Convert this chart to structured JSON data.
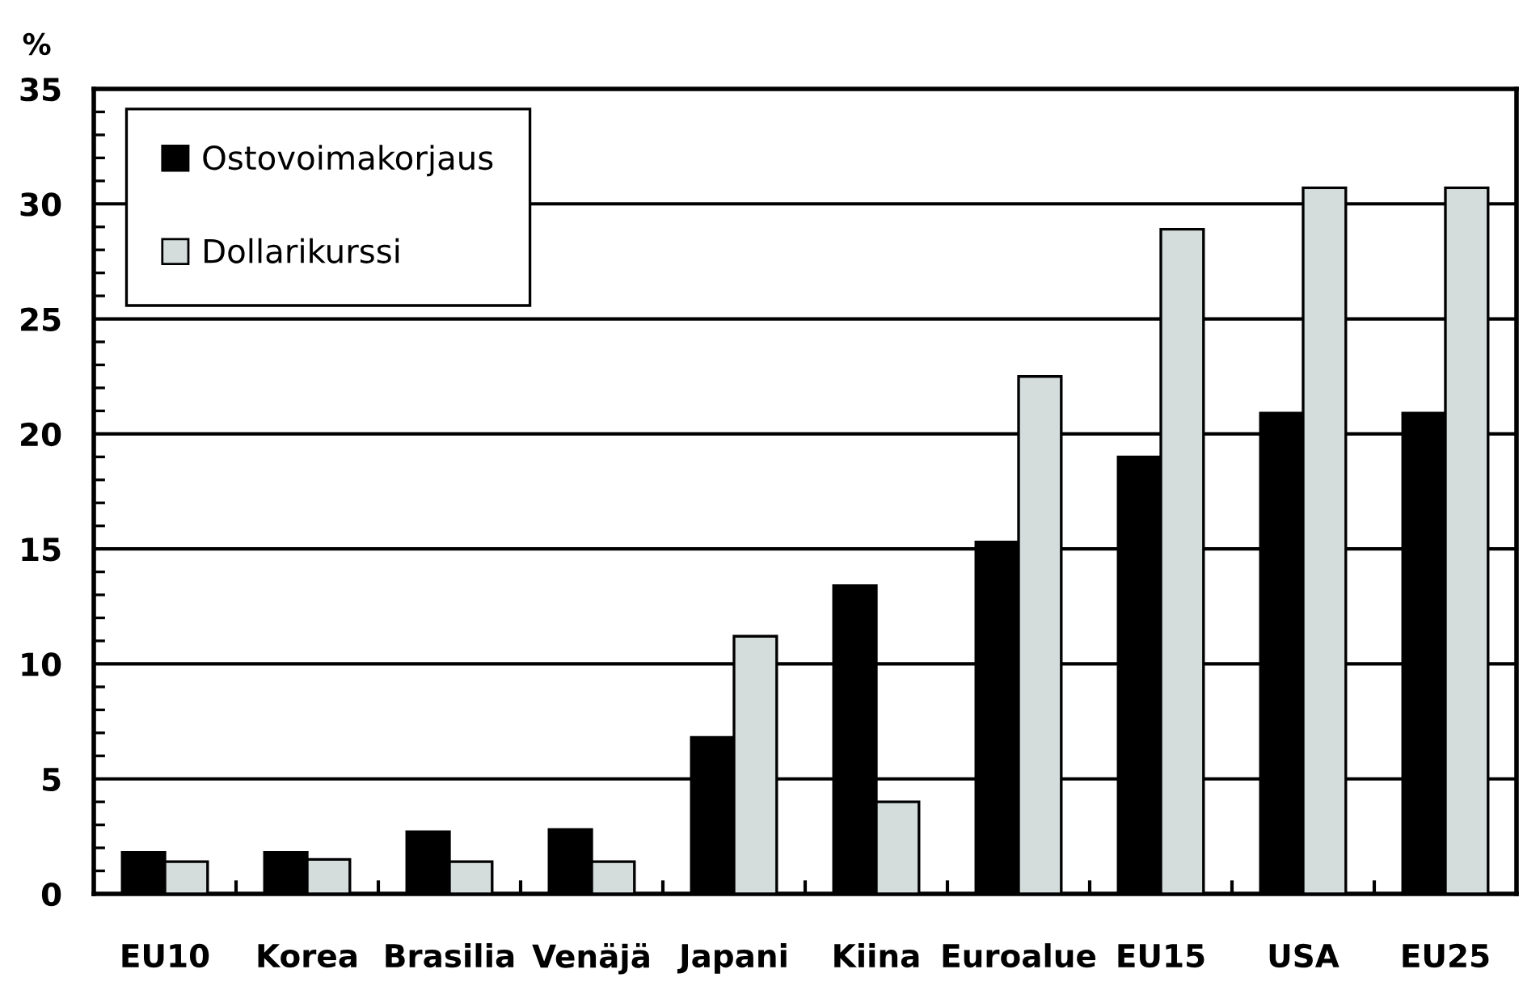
{
  "chart_data": {
    "type": "bar",
    "ylabel": "%",
    "categories": [
      "EU10",
      "Korea",
      "Brasilia",
      "Venäjä",
      "Japani",
      "Kiina",
      "Euroalue",
      "EU15",
      "USA",
      "EU25"
    ],
    "series": [
      {
        "name": "Ostovoimakorjaus",
        "color": "#000000",
        "values": [
          1.8,
          1.8,
          2.7,
          2.8,
          6.8,
          13.4,
          15.3,
          19.0,
          20.9,
          20.9
        ]
      },
      {
        "name": "Dollarikurssi",
        "color": "#d4dcdc",
        "values": [
          1.4,
          1.5,
          1.4,
          1.4,
          11.2,
          4.0,
          22.5,
          28.9,
          30.7,
          30.7
        ]
      }
    ],
    "ylim": [
      0,
      35
    ],
    "yticks": [
      0,
      5,
      10,
      15,
      20,
      25,
      30,
      35
    ],
    "grid": "y",
    "legend": "top left"
  }
}
